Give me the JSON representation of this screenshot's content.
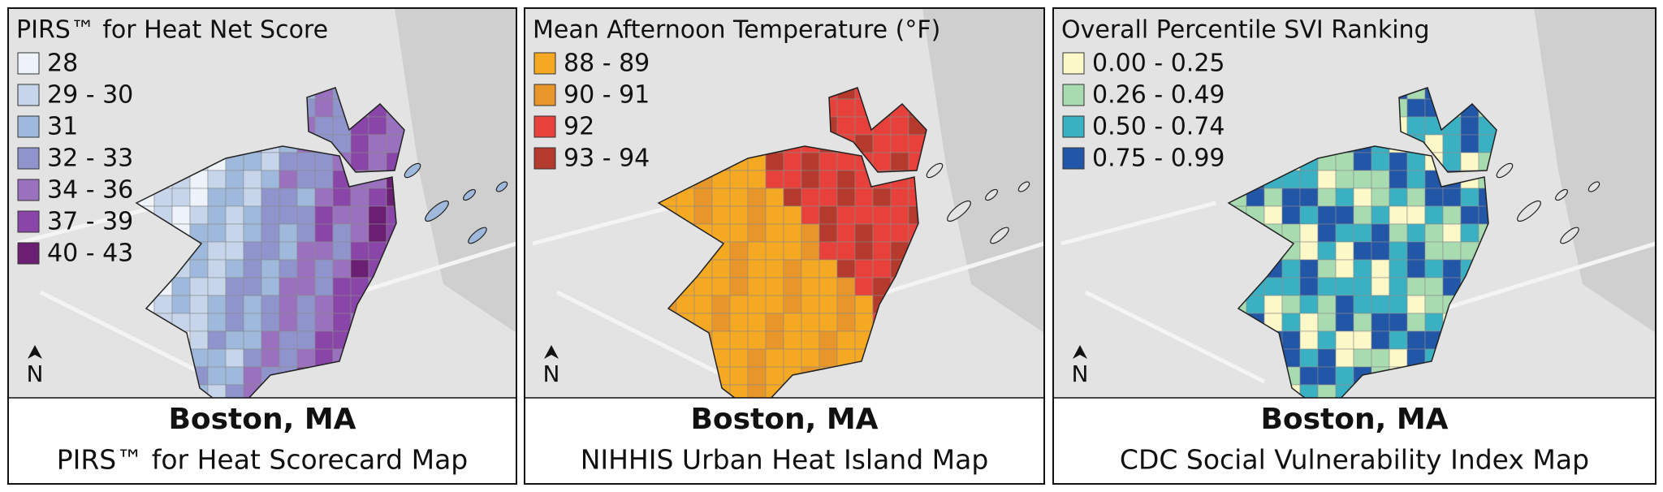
{
  "panels": [
    {
      "legend": {
        "title": "PIRS™ for Heat Net Score",
        "items": [
          {
            "label": "28",
            "color": "#eef3fa"
          },
          {
            "label": "29 - 30",
            "color": "#c6d5ea"
          },
          {
            "label": "31",
            "color": "#9fb9dd"
          },
          {
            "label": "32 - 33",
            "color": "#8f95cc"
          },
          {
            "label": "34 - 36",
            "color": "#9a71bf"
          },
          {
            "label": "37 - 39",
            "color": "#8a45a8"
          },
          {
            "label": "40 - 43",
            "color": "#6a1f73"
          }
        ]
      },
      "north": "N",
      "caption": {
        "title": "Boston, MA",
        "subtitle": "PIRS™ for Heat Scorecard Map"
      }
    },
    {
      "legend": {
        "title": "Mean Afternoon Temperature (°F)",
        "items": [
          {
            "label": "88 - 89",
            "color": "#f5a821"
          },
          {
            "label": "90 - 91",
            "color": "#e8952a"
          },
          {
            "label": "92",
            "color": "#e8403a"
          },
          {
            "label": "93 - 94",
            "color": "#b5392c"
          }
        ]
      },
      "north": "N",
      "caption": {
        "title": "Boston, MA",
        "subtitle": "NIHHIS Urban Heat Island Map"
      }
    },
    {
      "legend": {
        "title": "Overall Percentile SVI Ranking",
        "items": [
          {
            "label": "0.00 - 0.25",
            "color": "#fdf8c8"
          },
          {
            "label": "0.26 - 0.49",
            "color": "#a8dbb0"
          },
          {
            "label": "0.50 - 0.74",
            "color": "#3ab1c3"
          },
          {
            "label": "0.75 - 0.99",
            "color": "#2257a8"
          }
        ]
      },
      "north": "N",
      "caption": {
        "title": "Boston, MA",
        "subtitle": "CDC Social Vulnerability Index Map"
      }
    }
  ]
}
